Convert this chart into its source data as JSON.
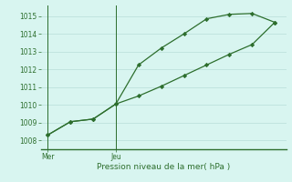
{
  "line1_x": [
    0,
    1,
    2,
    3,
    4,
    5,
    6,
    7,
    8,
    9,
    10
  ],
  "line1_y": [
    1008.3,
    1009.05,
    1009.2,
    1010.05,
    1012.25,
    1013.2,
    1014.0,
    1014.85,
    1015.1,
    1015.15,
    1014.65
  ],
  "line2_x": [
    0,
    1,
    2,
    3,
    4,
    5,
    6,
    7,
    8,
    9,
    10
  ],
  "line2_y": [
    1008.3,
    1009.05,
    1009.2,
    1010.05,
    1010.5,
    1011.05,
    1011.65,
    1012.25,
    1012.85,
    1013.4,
    1014.65
  ],
  "line_color": "#2d6e2d",
  "bg_color": "#d8f5f0",
  "grid_color": "#b8ddd8",
  "xlabel": "Pression niveau de la mer( hPa )",
  "xlabel_color": "#2d6e2d",
  "tick_color": "#2d6e2d",
  "ylim": [
    1007.5,
    1015.6
  ],
  "yticks": [
    1008,
    1009,
    1010,
    1011,
    1012,
    1013,
    1014,
    1015
  ],
  "mer_x": 0,
  "jeu_x": 3,
  "xlim": [
    -0.3,
    10.5
  ]
}
